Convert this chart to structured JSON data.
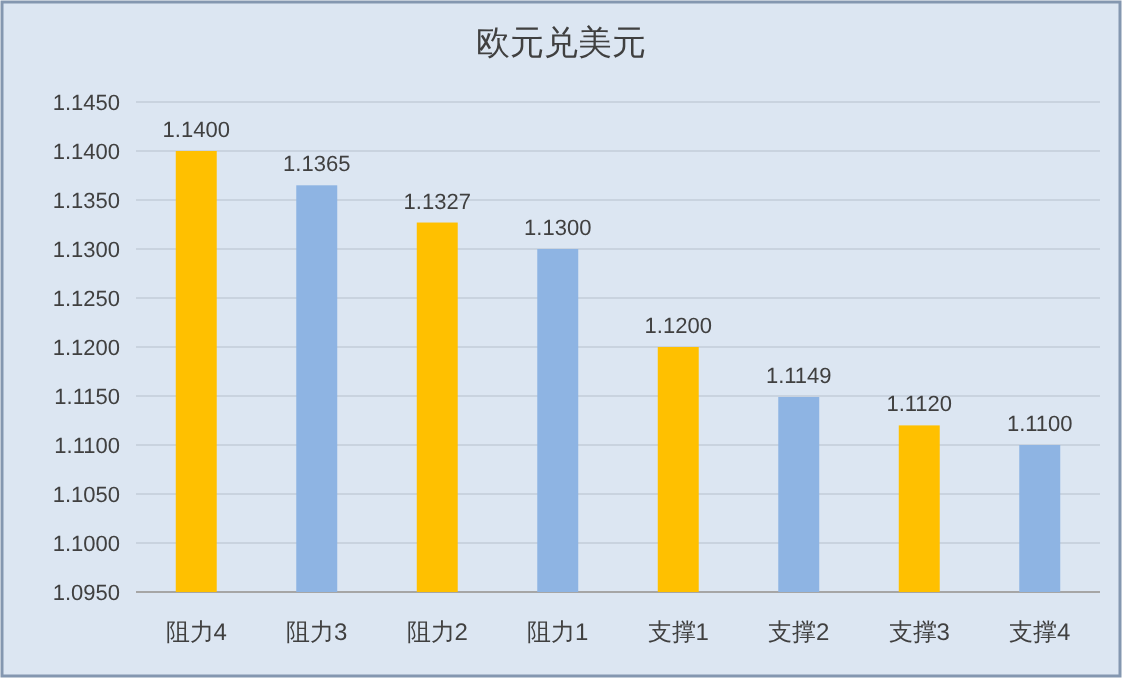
{
  "chart_data": {
    "type": "bar",
    "title": "欧元兑美元",
    "categories": [
      "阻力4",
      "阻力3",
      "阻力2",
      "阻力1",
      "支撑1",
      "支撑2",
      "支撑3",
      "支撑4"
    ],
    "values": [
      1.14,
      1.1365,
      1.1327,
      1.13,
      1.12,
      1.1149,
      1.112,
      1.11
    ],
    "value_labels": [
      "1.1400",
      "1.1365",
      "1.1327",
      "1.1300",
      "1.1200",
      "1.1149",
      "1.1120",
      "1.1100"
    ],
    "colors": [
      "#ffc000",
      "#8eb4e3",
      "#ffc000",
      "#8eb4e3",
      "#ffc000",
      "#8eb4e3",
      "#ffc000",
      "#8eb4e3"
    ],
    "ylim": [
      1.095,
      1.145
    ],
    "yticks": [
      {
        "value": 1.095,
        "label": "1.0950"
      },
      {
        "value": 1.1,
        "label": "1.1000"
      },
      {
        "value": 1.105,
        "label": "1.1050"
      },
      {
        "value": 1.11,
        "label": "1.1100"
      },
      {
        "value": 1.115,
        "label": "1.1150"
      },
      {
        "value": 1.12,
        "label": "1.1200"
      },
      {
        "value": 1.125,
        "label": "1.1250"
      },
      {
        "value": 1.13,
        "label": "1.1300"
      },
      {
        "value": 1.135,
        "label": "1.1350"
      },
      {
        "value": 1.14,
        "label": "1.1400"
      },
      {
        "value": 1.145,
        "label": "1.1450"
      }
    ],
    "grid": "y"
  }
}
